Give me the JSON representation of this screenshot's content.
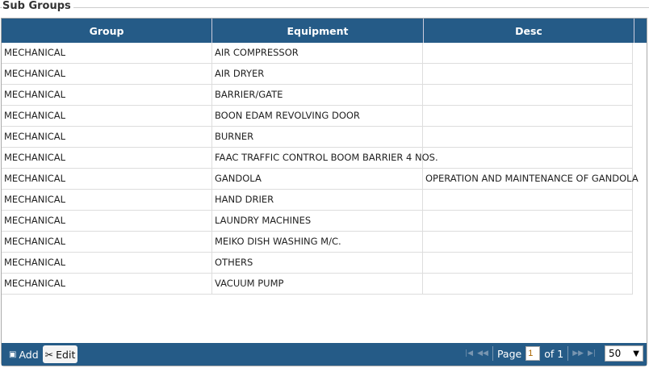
{
  "title": "Sub Groups",
  "columns": [
    "Group",
    "Equipment",
    "Desc"
  ],
  "rows": [
    [
      "MECHANICAL",
      "AIR COMPRESSOR",
      ""
    ],
    [
      "MECHANICAL",
      "AIR DRYER",
      ""
    ],
    [
      "MECHANICAL",
      "BARRIER/GATE",
      ""
    ],
    [
      "MECHANICAL",
      "BOON EDAM REVOLVING DOOR",
      ""
    ],
    [
      "MECHANICAL",
      "BURNER",
      ""
    ],
    [
      "MECHANICAL",
      "FAAC TRAFFIC CONTROL BOOM BARRIER 4 NOS.",
      ""
    ],
    [
      "MECHANICAL",
      "GANDOLA",
      "OPERATION AND MAINTENANCE OF GANDOLA"
    ],
    [
      "MECHANICAL",
      "HAND DRIER",
      ""
    ],
    [
      "MECHANICAL",
      "LAUNDRY MACHINES",
      ""
    ],
    [
      "MECHANICAL",
      "MEIKO DISH WASHING M/C.",
      ""
    ],
    [
      "MECHANICAL",
      "OTHERS",
      ""
    ],
    [
      "MECHANICAL",
      "VACUUM PUMP",
      ""
    ]
  ],
  "footer": {
    "add": "Add",
    "edit": "Edit",
    "page_label": "Page",
    "page_value": "1",
    "of_label": "of 1",
    "page_size": "50"
  }
}
